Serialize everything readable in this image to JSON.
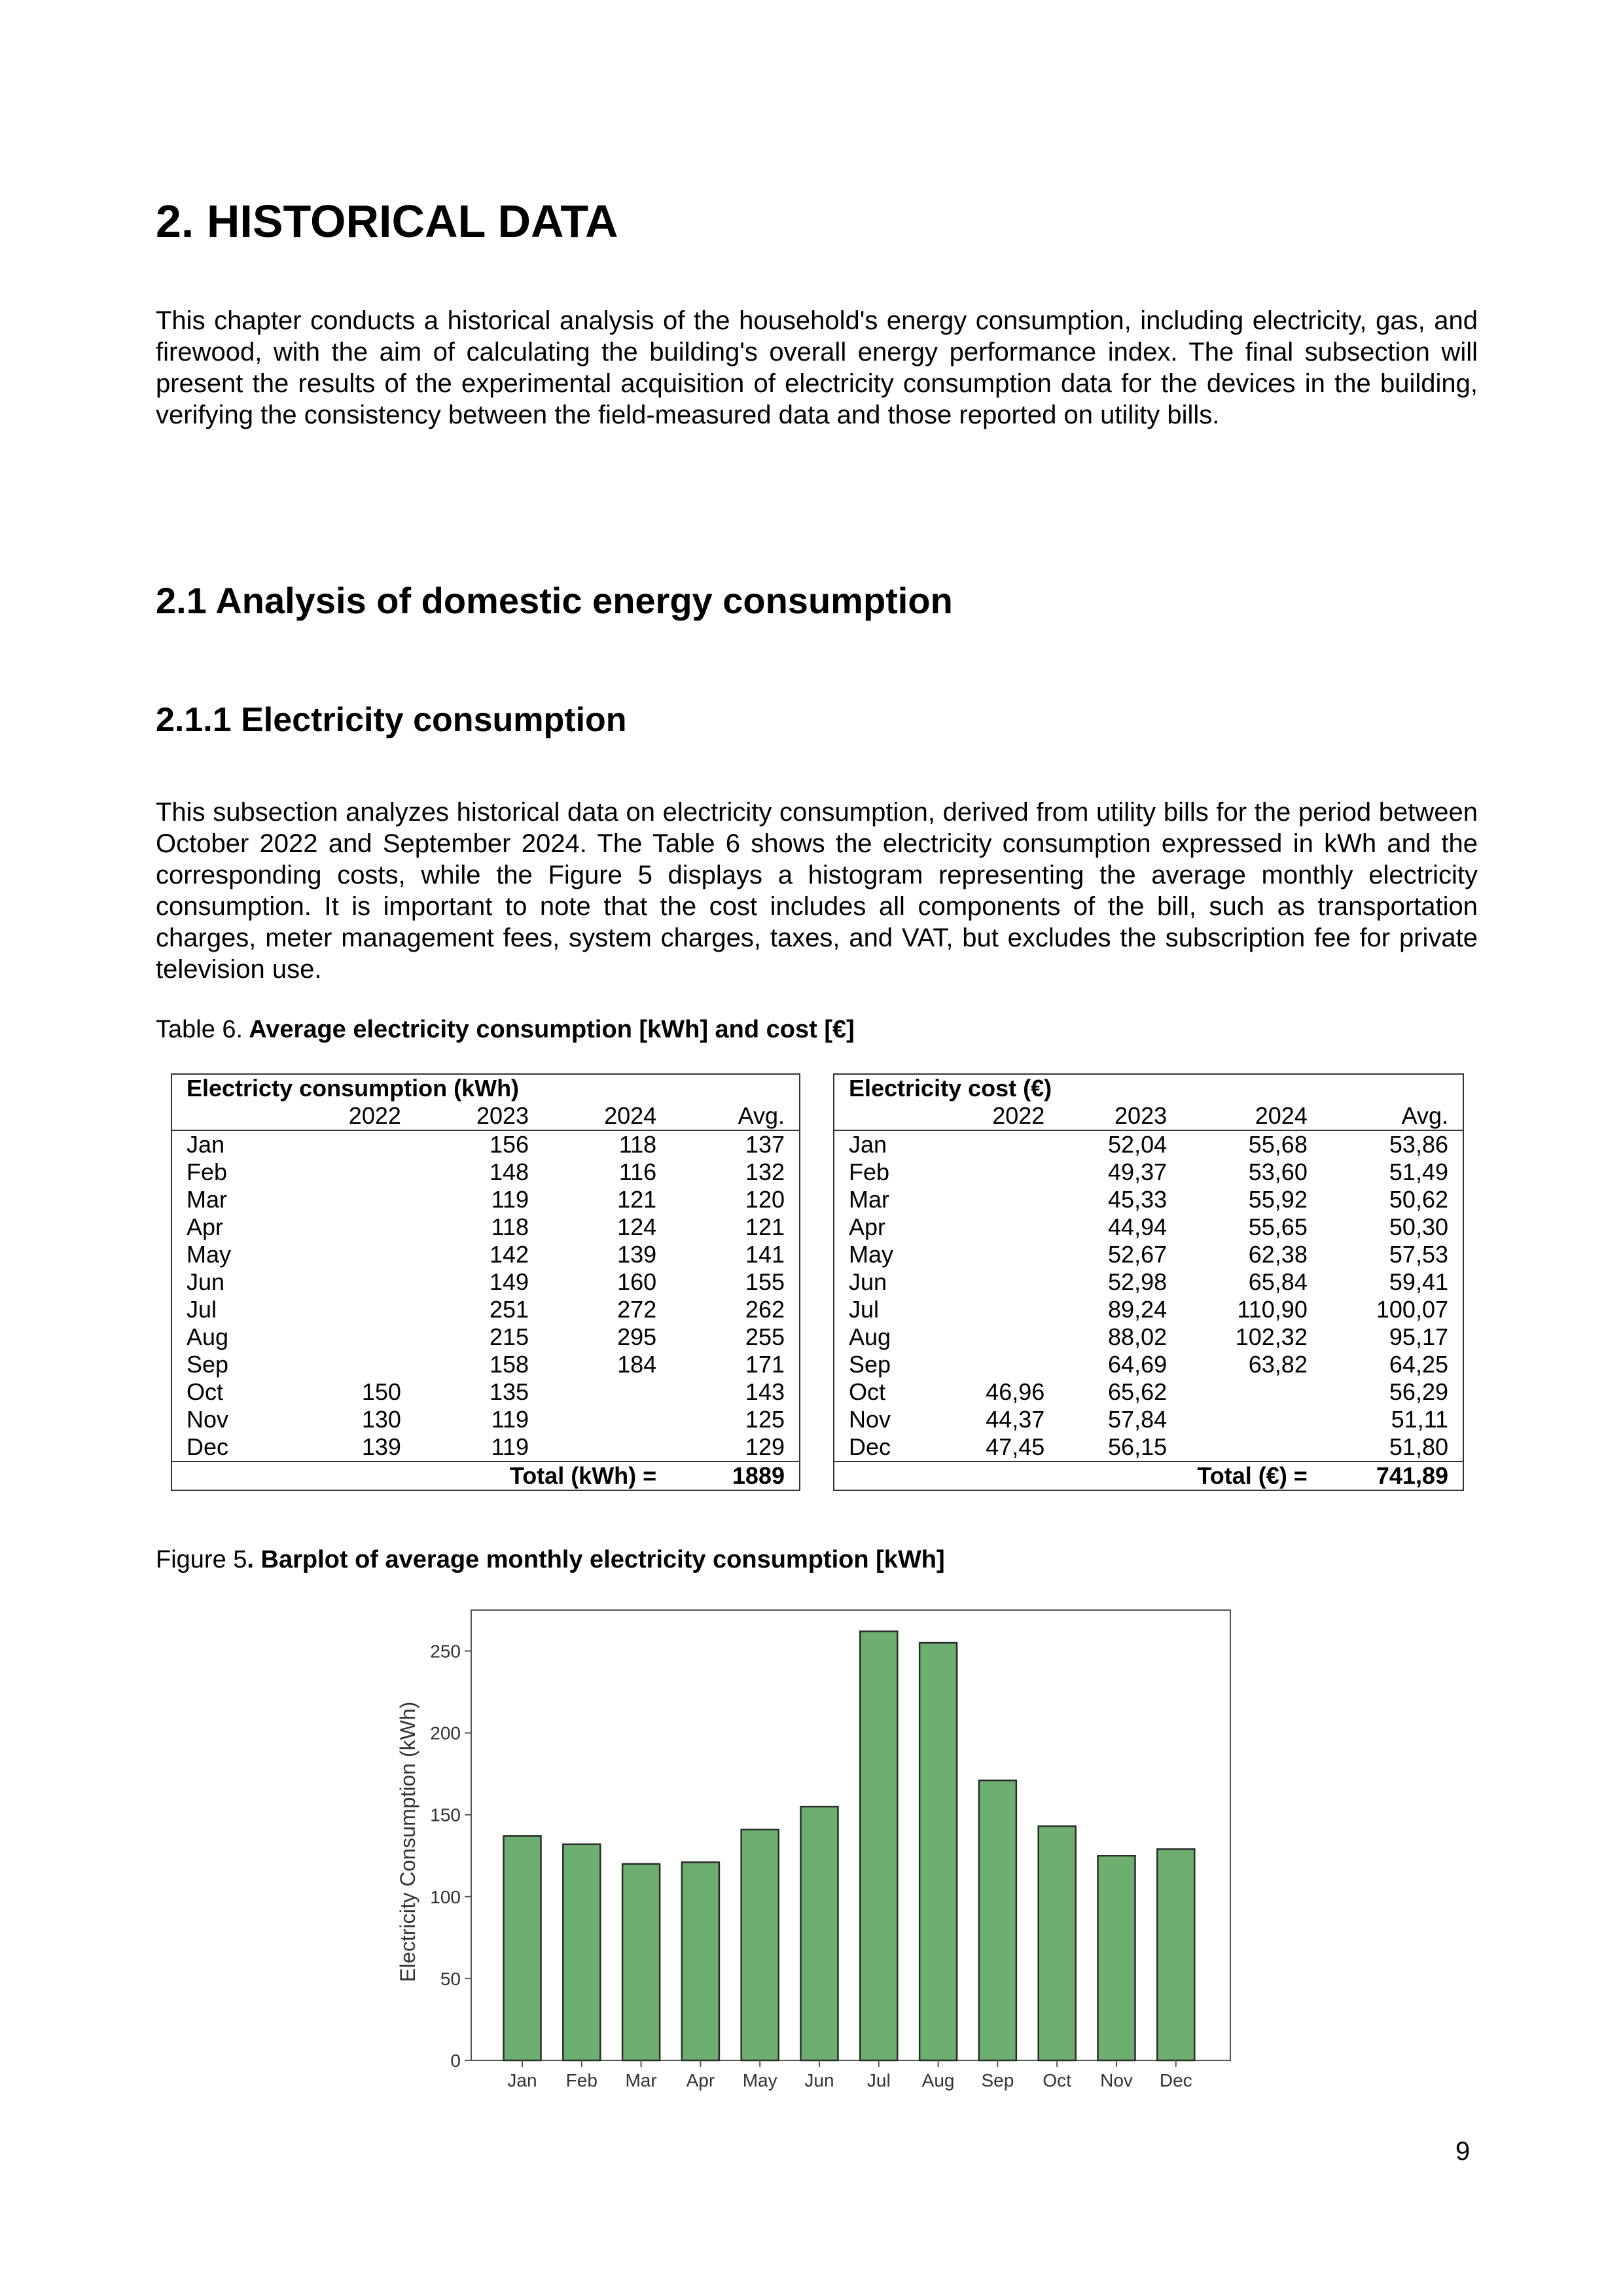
{
  "heading_main": "2. HISTORICAL DATA",
  "intro_paragraph": "This chapter conducts a historical analysis of the household's energy consumption, including electricity, gas, and firewood, with the aim of calculating the building's overall energy performance index. The final subsection will present the results of the experimental acquisition of electricity consumption data for the devices in the building, verifying the consistency between the field-measured data and those reported on utility bills.",
  "heading_section": "2.1 Analysis of domestic energy consumption",
  "heading_subsection": "2.1.1 Electricity consumption",
  "subsection_paragraph": "This subsection analyzes historical data on electricity consumption, derived from utility bills for the period between October 2022 and September 2024. The Table 6 shows the electricity consumption expressed in kWh and the corresponding costs, while the Figure 5 displays a histogram representing the average monthly electricity consumption. It is important to note that the cost includes all components of the bill, such as transportation charges, meter management fees, system charges, taxes, and VAT, but excludes the subscription fee for private television use.",
  "table_caption": {
    "label": "Table 6.",
    "text": " Average electricity consumption [kWh] and cost [€]"
  },
  "consumption_table": {
    "title": "Electricty consumption (kWh)",
    "headers": [
      "",
      "2022",
      "2023",
      "2024",
      "Avg."
    ],
    "rows": [
      [
        "Jan",
        "",
        "156",
        "118",
        "137"
      ],
      [
        "Feb",
        "",
        "148",
        "116",
        "132"
      ],
      [
        "Mar",
        "",
        "119",
        "121",
        "120"
      ],
      [
        "Apr",
        "",
        "118",
        "124",
        "121"
      ],
      [
        "May",
        "",
        "142",
        "139",
        "141"
      ],
      [
        "Jun",
        "",
        "149",
        "160",
        "155"
      ],
      [
        "Jul",
        "",
        "251",
        "272",
        "262"
      ],
      [
        "Aug",
        "",
        "215",
        "295",
        "255"
      ],
      [
        "Sep",
        "",
        "158",
        "184",
        "171"
      ],
      [
        "Oct",
        "150",
        "135",
        "",
        "143"
      ],
      [
        "Nov",
        "130",
        "119",
        "",
        "125"
      ],
      [
        "Dec",
        "139",
        "119",
        "",
        "129"
      ]
    ],
    "total_label": "Total (kWh) =",
    "total_value": "1889"
  },
  "cost_table": {
    "title": "Electricity cost (€)",
    "headers": [
      "",
      "2022",
      "2023",
      "2024",
      "Avg."
    ],
    "rows": [
      [
        "Jan",
        "",
        "52,04",
        "55,68",
        "53,86"
      ],
      [
        "Feb",
        "",
        "49,37",
        "53,60",
        "51,49"
      ],
      [
        "Mar",
        "",
        "45,33",
        "55,92",
        "50,62"
      ],
      [
        "Apr",
        "",
        "44,94",
        "55,65",
        "50,30"
      ],
      [
        "May",
        "",
        "52,67",
        "62,38",
        "57,53"
      ],
      [
        "Jun",
        "",
        "52,98",
        "65,84",
        "59,41"
      ],
      [
        "Jul",
        "",
        "89,24",
        "110,90",
        "100,07"
      ],
      [
        "Aug",
        "",
        "88,02",
        "102,32",
        "95,17"
      ],
      [
        "Sep",
        "",
        "64,69",
        "63,82",
        "64,25"
      ],
      [
        "Oct",
        "46,96",
        "65,62",
        "",
        "56,29"
      ],
      [
        "Nov",
        "44,37",
        "57,84",
        "",
        "51,11"
      ],
      [
        "Dec",
        "47,45",
        "56,15",
        "",
        "51,80"
      ]
    ],
    "total_label": "Total (€) =",
    "total_value": "741,89"
  },
  "figure_caption": {
    "label": "Figure 5",
    "text": ". Barplot of average monthly electricity consumption [kWh]"
  },
  "chart_data": {
    "type": "bar",
    "categories": [
      "Jan",
      "Feb",
      "Mar",
      "Apr",
      "May",
      "Jun",
      "Jul",
      "Aug",
      "Sep",
      "Oct",
      "Nov",
      "Dec"
    ],
    "values": [
      137,
      132,
      120,
      121,
      141,
      155,
      262,
      255,
      171,
      143,
      125,
      129
    ],
    "title": "",
    "xlabel": "",
    "ylabel": "Electricity Consumption (kWh)",
    "ylim": [
      0,
      275
    ],
    "yticks": [
      0,
      50,
      100,
      150,
      200,
      250
    ],
    "grid": false,
    "bar_color": "#6daf6f",
    "bar_edge_color": "#2b2b2b"
  },
  "page_number": "9"
}
